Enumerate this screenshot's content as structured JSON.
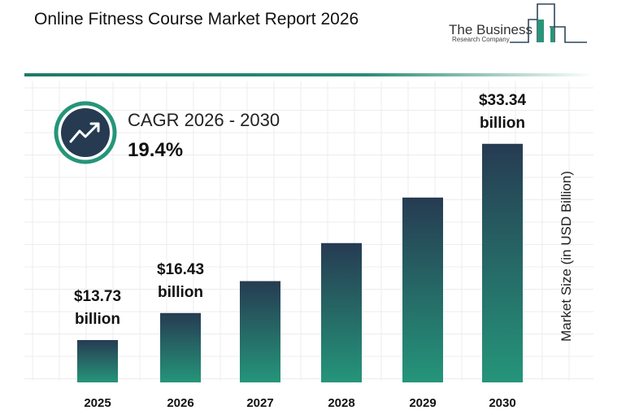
{
  "header": {
    "title": "Online Fitness Course Market Report 2026"
  },
  "logo": {
    "line1": "The Business",
    "line2": "Research Company"
  },
  "cagr": {
    "label": "CAGR 2026 - 2030",
    "value": "19.4%"
  },
  "colors": {
    "bar_top": "#263b52",
    "bar_bottom": "#25957a",
    "accent": "#1f7a66",
    "icon_bg": "#263b52"
  },
  "chart_data": {
    "type": "bar",
    "categories": [
      "2025",
      "2026",
      "2027",
      "2028",
      "2029",
      "2030"
    ],
    "values": [
      13.73,
      16.43,
      19.62,
      23.42,
      27.97,
      33.34
    ],
    "data_labels": [
      {
        "index": 0,
        "line1": "$13.73",
        "line2": "billion"
      },
      {
        "index": 1,
        "line1": "$16.43",
        "line2": "billion"
      },
      {
        "index": 5,
        "line1": "$33.34",
        "line2": "billion"
      }
    ],
    "ylabel": "Market Size (in USD Billion)",
    "xlabel": "",
    "grid": true
  }
}
